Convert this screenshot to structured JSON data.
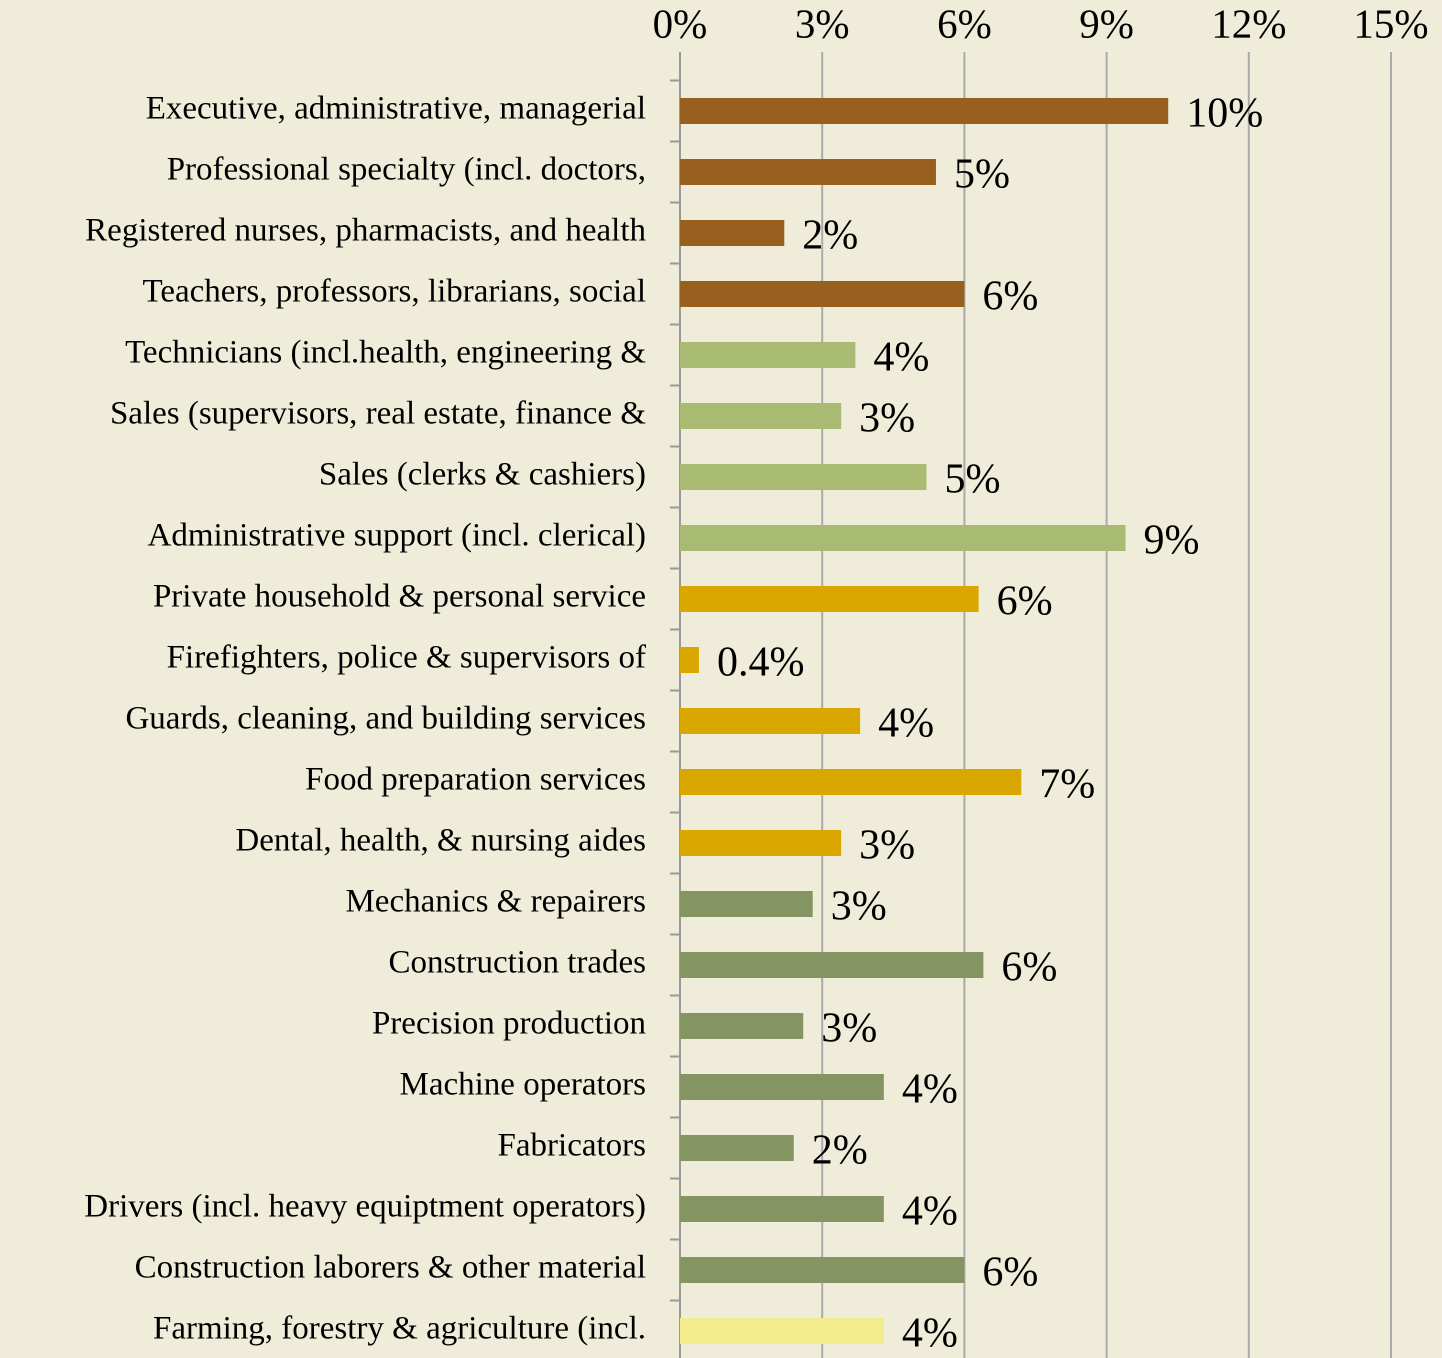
{
  "chart_data": {
    "type": "bar",
    "orientation": "horizontal",
    "categories": [
      "Executive, administrative, managerial",
      "Professional specialty (incl. doctors,",
      "Registered nurses, pharmacists, and health",
      "Teachers, professors, librarians, social",
      "Technicians (incl.health, engineering &",
      "Sales (supervisors, real estate, finance &",
      "Sales (clerks & cashiers)",
      "Administrative support (incl. clerical)",
      "Private household & personal service",
      "Firefighters, police & supervisors of",
      "Guards, cleaning, and building services",
      "Food preparation services",
      "Dental, health, & nursing aides",
      "Mechanics & repairers",
      "Construction trades",
      "Precision production",
      "Machine operators",
      "Fabricators",
      "Drivers (incl. heavy equiptment operators)",
      "Construction laborers & other material",
      "Farming, forestry & agriculture (incl."
    ],
    "values": [
      10.3,
      5.4,
      2.2,
      6.0,
      3.7,
      3.4,
      5.2,
      9.4,
      6.3,
      0.4,
      3.8,
      7.2,
      3.4,
      2.8,
      6.4,
      2.6,
      4.3,
      2.4,
      4.3,
      6.0,
      4.3
    ],
    "value_labels": [
      "10%",
      "5%",
      "2%",
      "6%",
      "4%",
      "3%",
      "5%",
      "9%",
      "6%",
      "0.4%",
      "4%",
      "7%",
      "3%",
      "3%",
      "6%",
      "3%",
      "4%",
      "2%",
      "4%",
      "6%",
      "4%"
    ],
    "colors": [
      "#98601f",
      "#98601f",
      "#98601f",
      "#98601f",
      "#a9bb72",
      "#a9bb72",
      "#a9bb72",
      "#a9bb72",
      "#d9a700",
      "#d9a700",
      "#d9a700",
      "#d9a700",
      "#d9a700",
      "#849462",
      "#849462",
      "#849462",
      "#849462",
      "#849462",
      "#849462",
      "#849462",
      "#f2ec8c"
    ],
    "xlim": [
      0,
      15
    ],
    "xticks": [
      {
        "value": 0,
        "label": "0%"
      },
      {
        "value": 3,
        "label": "3%"
      },
      {
        "value": 6,
        "label": "6%"
      },
      {
        "value": 9,
        "label": "9%"
      },
      {
        "value": 12,
        "label": "12%"
      },
      {
        "value": 15,
        "label": "15%"
      }
    ],
    "grid": true
  }
}
